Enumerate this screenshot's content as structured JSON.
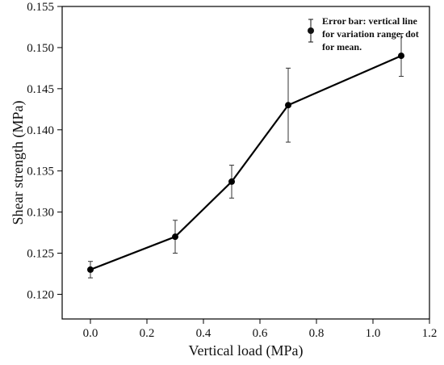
{
  "chart_data": {
    "type": "line",
    "xlabel": "Vertical load (MPa)",
    "ylabel": "Shear strength (MPa)",
    "xlim": [
      -0.1,
      1.2
    ],
    "ylim": [
      0.117,
      0.155
    ],
    "xticks": [
      "0.0",
      "0.2",
      "0.4",
      "0.6",
      "0.8",
      "1.0",
      "1.2"
    ],
    "yticks": [
      "0.120",
      "0.125",
      "0.130",
      "0.135",
      "0.140",
      "0.145",
      "0.150",
      "0.155"
    ],
    "series": [
      {
        "x": [
          0.0,
          0.3,
          0.5,
          0.7,
          1.1
        ],
        "y": [
          0.123,
          0.127,
          0.1337,
          0.143,
          0.149
        ],
        "err_low": [
          0.122,
          0.125,
          0.1317,
          0.1385,
          0.1465
        ],
        "err_high": [
          0.124,
          0.129,
          0.1357,
          0.1475,
          0.1517
        ]
      }
    ],
    "legend": {
      "position": "top-right",
      "lines": [
        "Error bar: vertical line",
        "for variation range, dot",
        "for mean."
      ]
    },
    "grid": false,
    "colors": {
      "line": "#000000",
      "axis": "#000000"
    }
  }
}
